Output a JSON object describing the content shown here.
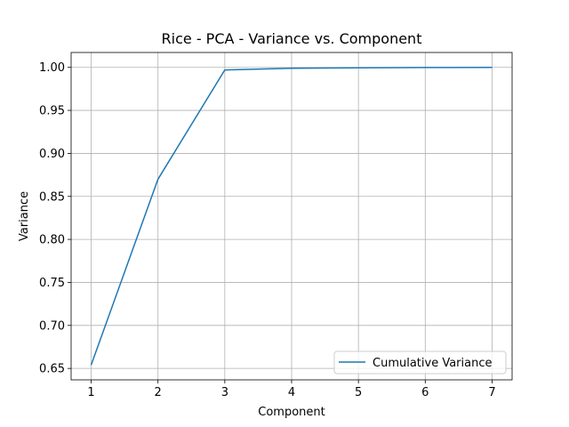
{
  "chart_data": {
    "type": "line",
    "title": "Rice - PCA - Variance vs. Component",
    "xlabel": "Component",
    "ylabel": "Variance",
    "x": [
      1,
      2,
      3,
      4,
      5,
      6,
      7
    ],
    "series": [
      {
        "name": "Cumulative Variance",
        "values": [
          0.654,
          0.87,
          0.997,
          0.999,
          0.9995,
          0.9998,
          1.0
        ],
        "color": "#1f77b4"
      }
    ],
    "xlim": [
      0.7,
      7.3
    ],
    "ylim": [
      0.6367,
      1.0173
    ],
    "xticks": [
      "1",
      "2",
      "3",
      "4",
      "5",
      "6",
      "7"
    ],
    "yticks": [
      "0.65",
      "0.70",
      "0.75",
      "0.80",
      "0.85",
      "0.90",
      "0.95",
      "1.00"
    ],
    "ytick_values": [
      0.65,
      0.7,
      0.75,
      0.8,
      0.85,
      0.9,
      0.95,
      1.0
    ],
    "grid": true,
    "legend_position": "lower-right"
  }
}
